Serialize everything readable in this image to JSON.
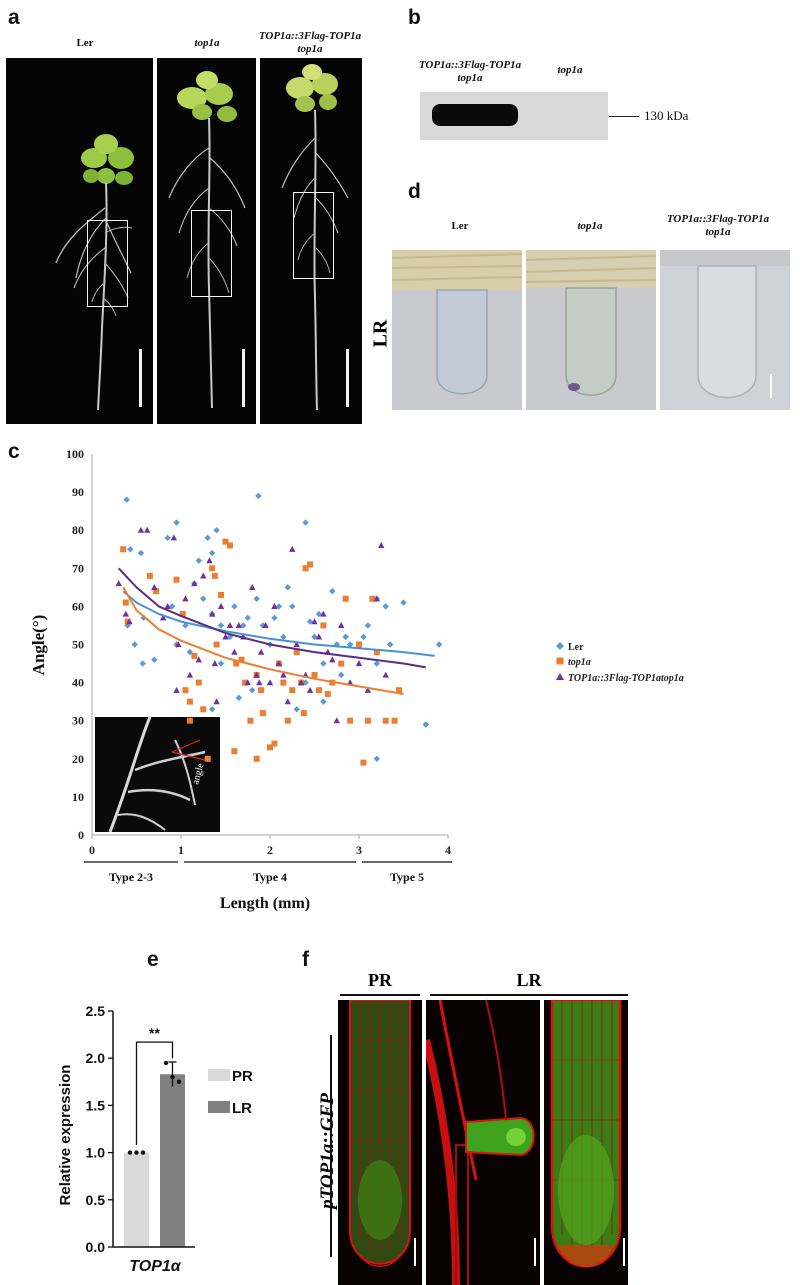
{
  "panels": {
    "a": "a",
    "b": "b",
    "c": "c",
    "d": "d",
    "e": "e",
    "f": "f"
  },
  "panel_a": {
    "genotypes": [
      "Ler",
      "top1a",
      "TOP1a::3Flag-TOP1a"
    ],
    "genotype3_line2": "top1a"
  },
  "panel_b": {
    "lane1_line1": "TOP1a::3Flag-TOP1a",
    "lane1_line2": "top1a",
    "lane2": "top1a",
    "marker": "130 kDa"
  },
  "panel_d": {
    "row_label": "LR",
    "genotypes": [
      "Ler",
      "top1a",
      "TOP1a::3Flag-TOP1a"
    ],
    "genotype3_line2": "top1a"
  },
  "panel_f": {
    "pr_label": "PR",
    "lr_label": "LR",
    "construct": "pTOP1a::GFP"
  },
  "colors": {
    "ler": "#5b9bd5",
    "top1a": "#ed7d31",
    "flag": "#7030a0",
    "ler_fit": "#4a90d9",
    "top1a_fit": "#ed7d31",
    "flag_fit": "#5b2c83",
    "bar_pr": "#d9d9d9",
    "bar_lr": "#808080"
  },
  "chart_data": [
    {
      "type": "scatter",
      "ylabel": "Angle(°)",
      "xlabel": "Length (mm)",
      "xlim": [
        0,
        4
      ],
      "ylim": [
        0,
        100
      ],
      "xticks": [
        0,
        1,
        2,
        3,
        4
      ],
      "yticks": [
        0,
        10,
        20,
        30,
        40,
        50,
        60,
        70,
        80,
        90,
        100
      ],
      "type_ranges": [
        {
          "label": "Type 2-3",
          "from": 0,
          "to": 1
        },
        {
          "label": "Type 4",
          "from": 1,
          "to": 3
        },
        {
          "label": "Type 5",
          "from": 3,
          "to": 4
        }
      ],
      "inset_label": "angle",
      "legend_position": "right",
      "series": [
        {
          "name": "Ler",
          "marker": "diamond",
          "points": [
            [
              0.39,
              88
            ],
            [
              0.43,
              75
            ],
            [
              0.55,
              74
            ],
            [
              0.58,
              57
            ],
            [
              0.4,
              55
            ],
            [
              0.48,
              50
            ],
            [
              0.7,
              46
            ],
            [
              0.57,
              45
            ],
            [
              0.85,
              78
            ],
            [
              0.95,
              82
            ],
            [
              0.9,
              60
            ],
            [
              1.05,
              55
            ],
            [
              1.15,
              66
            ],
            [
              1.2,
              72
            ],
            [
              1.25,
              62
            ],
            [
              1.3,
              78
            ],
            [
              1.35,
              74
            ],
            [
              1.35,
              58
            ],
            [
              1.4,
              80
            ],
            [
              1.45,
              55
            ],
            [
              1.55,
              52
            ],
            [
              1.6,
              60
            ],
            [
              1.7,
              55
            ],
            [
              1.75,
              57
            ],
            [
              1.85,
              62
            ],
            [
              1.87,
              89
            ],
            [
              1.92,
              55
            ],
            [
              2.0,
              50
            ],
            [
              2.05,
              57
            ],
            [
              2.1,
              60
            ],
            [
              2.15,
              52
            ],
            [
              2.2,
              65
            ],
            [
              2.25,
              60
            ],
            [
              2.4,
              82
            ],
            [
              2.45,
              56
            ],
            [
              2.5,
              52
            ],
            [
              2.55,
              58
            ],
            [
              2.6,
              45
            ],
            [
              2.7,
              64
            ],
            [
              2.75,
              50
            ],
            [
              2.85,
              52
            ],
            [
              2.9,
              50
            ],
            [
              3.05,
              52
            ],
            [
              3.1,
              55
            ],
            [
              3.2,
              62
            ],
            [
              3.3,
              60
            ],
            [
              3.35,
              50
            ],
            [
              3.2,
              45
            ],
            [
              3.5,
              61
            ],
            [
              3.9,
              50
            ],
            [
              3.75,
              29
            ],
            [
              3.2,
              20
            ],
            [
              3.1,
              30
            ],
            [
              2.8,
              42
            ],
            [
              2.6,
              35
            ],
            [
              2.4,
              40
            ],
            [
              2.3,
              33
            ],
            [
              1.8,
              38
            ],
            [
              1.65,
              36
            ],
            [
              1.35,
              33
            ],
            [
              1.45,
              45
            ],
            [
              1.1,
              48
            ],
            [
              0.95,
              50
            ]
          ]
        },
        {
          "name": "top1a",
          "marker": "square",
          "points": [
            [
              0.35,
              75
            ],
            [
              0.38,
              61
            ],
            [
              0.4,
              56
            ],
            [
              0.65,
              68
            ],
            [
              0.72,
              64
            ],
            [
              0.95,
              67
            ],
            [
              1.02,
              58
            ],
            [
              1.05,
              38
            ],
            [
              1.1,
              35
            ],
            [
              1.1,
              30
            ],
            [
              1.2,
              40
            ],
            [
              1.3,
              20
            ],
            [
              1.35,
              70
            ],
            [
              1.38,
              68
            ],
            [
              1.45,
              63
            ],
            [
              1.5,
              77
            ],
            [
              1.55,
              76
            ],
            [
              1.62,
              45
            ],
            [
              1.68,
              46
            ],
            [
              1.72,
              40
            ],
            [
              1.78,
              30
            ],
            [
              1.85,
              20
            ],
            [
              1.85,
              42
            ],
            [
              1.9,
              38
            ],
            [
              1.92,
              32
            ],
            [
              2.0,
              23
            ],
            [
              2.05,
              24
            ],
            [
              2.1,
              45
            ],
            [
              2.15,
              40
            ],
            [
              2.2,
              30
            ],
            [
              2.25,
              38
            ],
            [
              2.3,
              48
            ],
            [
              2.35,
              40
            ],
            [
              2.38,
              32
            ],
            [
              2.4,
              70
            ],
            [
              2.45,
              71
            ],
            [
              2.5,
              42
            ],
            [
              2.55,
              38
            ],
            [
              2.6,
              55
            ],
            [
              2.65,
              37
            ],
            [
              2.7,
              40
            ],
            [
              2.8,
              45
            ],
            [
              2.85,
              62
            ],
            [
              2.9,
              30
            ],
            [
              3.0,
              50
            ],
            [
              3.05,
              19
            ],
            [
              3.1,
              30
            ],
            [
              3.15,
              62
            ],
            [
              3.2,
              48
            ],
            [
              3.3,
              30
            ],
            [
              3.4,
              30
            ],
            [
              3.45,
              38
            ],
            [
              1.25,
              33
            ],
            [
              1.6,
              22
            ],
            [
              1.4,
              50
            ],
            [
              1.15,
              47
            ]
          ]
        },
        {
          "name": "TOP1a::3Flag-TOP1atop1a",
          "marker": "triangle",
          "points": [
            [
              0.3,
              66
            ],
            [
              0.38,
              58
            ],
            [
              0.42,
              56
            ],
            [
              0.55,
              80
            ],
            [
              0.62,
              80
            ],
            [
              0.7,
              65
            ],
            [
              0.8,
              57
            ],
            [
              0.85,
              60
            ],
            [
              0.92,
              78
            ],
            [
              0.97,
              50
            ],
            [
              1.05,
              62
            ],
            [
              1.1,
              42
            ],
            [
              1.15,
              66
            ],
            [
              1.2,
              46
            ],
            [
              1.25,
              68
            ],
            [
              1.32,
              72
            ],
            [
              1.35,
              58
            ],
            [
              1.38,
              45
            ],
            [
              1.4,
              35
            ],
            [
              1.45,
              60
            ],
            [
              1.5,
              52
            ],
            [
              1.55,
              55
            ],
            [
              1.6,
              48
            ],
            [
              1.65,
              55
            ],
            [
              1.7,
              52
            ],
            [
              1.75,
              40
            ],
            [
              1.8,
              65
            ],
            [
              1.85,
              42
            ],
            [
              1.88,
              40
            ],
            [
              1.9,
              48
            ],
            [
              1.95,
              55
            ],
            [
              2.0,
              40
            ],
            [
              2.05,
              60
            ],
            [
              2.1,
              45
            ],
            [
              2.15,
              42
            ],
            [
              2.2,
              35
            ],
            [
              2.25,
              75
            ],
            [
              2.3,
              50
            ],
            [
              2.35,
              40
            ],
            [
              2.4,
              42
            ],
            [
              2.45,
              38
            ],
            [
              2.5,
              56
            ],
            [
              2.55,
              52
            ],
            [
              2.6,
              58
            ],
            [
              2.65,
              48
            ],
            [
              2.7,
              46
            ],
            [
              2.75,
              30
            ],
            [
              2.8,
              55
            ],
            [
              2.9,
              40
            ],
            [
              3.0,
              45
            ],
            [
              3.1,
              38
            ],
            [
              3.2,
              62
            ],
            [
              3.25,
              76
            ],
            [
              3.3,
              42
            ],
            [
              0.95,
              38
            ]
          ]
        }
      ],
      "fits": [
        {
          "name": "Ler",
          "points": [
            [
              0.35,
              64
            ],
            [
              0.5,
              61
            ],
            [
              0.75,
              58
            ],
            [
              1.0,
              56
            ],
            [
              1.5,
              53.5
            ],
            [
              2.0,
              51.5
            ],
            [
              2.5,
              50
            ],
            [
              3.0,
              49
            ],
            [
              3.5,
              48
            ],
            [
              3.85,
              47
            ]
          ]
        },
        {
          "name": "top1a",
          "points": [
            [
              0.35,
              65
            ],
            [
              0.5,
              59
            ],
            [
              0.75,
              54
            ],
            [
              1.0,
              51
            ],
            [
              1.5,
              46.5
            ],
            [
              2.0,
              43.5
            ],
            [
              2.5,
              41
            ],
            [
              3.0,
              39
            ],
            [
              3.5,
              37
            ]
          ]
        },
        {
          "name": "TOP1a::3Flag-TOP1atop1a",
          "points": [
            [
              0.3,
              70
            ],
            [
              0.5,
              65
            ],
            [
              0.75,
              60
            ],
            [
              1.0,
              57.5
            ],
            [
              1.5,
              53
            ],
            [
              2.0,
              50
            ],
            [
              2.5,
              48
            ],
            [
              3.0,
              46.5
            ],
            [
              3.5,
              45
            ],
            [
              3.75,
              44
            ]
          ]
        }
      ]
    },
    {
      "type": "bar",
      "title": "",
      "ylabel": "Relative expression",
      "categories": [
        "TOP1α"
      ],
      "ylim": [
        0,
        2.5
      ],
      "yticks": [
        "0.0",
        "0.5",
        "1.0",
        "1.5",
        "2.0",
        "2.5"
      ],
      "series": [
        {
          "name": "PR",
          "values": [
            1.0
          ],
          "points": [
            1.0,
            1.0,
            1.0
          ],
          "error": 0
        },
        {
          "name": "LR",
          "values": [
            1.83
          ],
          "points": [
            1.95,
            1.8,
            1.75
          ],
          "error": 0.13
        }
      ],
      "significance": "**",
      "legend_position": "right"
    }
  ]
}
